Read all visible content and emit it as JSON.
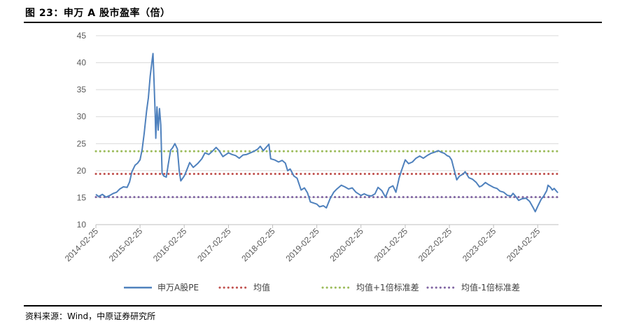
{
  "header": {
    "title": "图 23：申万 A 股市盈率（倍）"
  },
  "footer": {
    "source": "资料来源：Wind，中原证券研究所"
  },
  "chart_data": {
    "type": "line",
    "title": "图 23：申万 A 股市盈率（倍）",
    "xlabel": "",
    "ylabel": "",
    "ylim": [
      10,
      45
    ],
    "yticks": [
      10,
      15,
      20,
      25,
      30,
      35,
      40,
      45
    ],
    "xlim": [
      "2014-02-25",
      "2024-08-15"
    ],
    "xticks": [
      "2014-02-25",
      "2015-02-25",
      "2016-02-25",
      "2017-02-25",
      "2018-02-25",
      "2019-02-25",
      "2020-02-25",
      "2021-02-25",
      "2022-02-25",
      "2023-02-25",
      "2024-02-25"
    ],
    "grid": "horizontal",
    "legend_position": "bottom",
    "series": [
      {
        "name": "申万A股PE",
        "color": "#4f81bd",
        "style": "solid",
        "points": [
          [
            "2014-02-25",
            15.6
          ],
          [
            "2014-03-20",
            15.2
          ],
          [
            "2014-04-20",
            15.6
          ],
          [
            "2014-05-20",
            15.1
          ],
          [
            "2014-06-20",
            15.4
          ],
          [
            "2014-07-20",
            15.8
          ],
          [
            "2014-08-15",
            16.0
          ],
          [
            "2014-09-10",
            16.6
          ],
          [
            "2014-10-10",
            17.0
          ],
          [
            "2014-11-10",
            16.9
          ],
          [
            "2014-11-30",
            17.9
          ],
          [
            "2014-12-20",
            19.8
          ],
          [
            "2015-01-15",
            21.0
          ],
          [
            "2015-02-05",
            21.4
          ],
          [
            "2015-02-25",
            22.0
          ],
          [
            "2015-03-15",
            24.0
          ],
          [
            "2015-04-01",
            27.0
          ],
          [
            "2015-04-20",
            31.0
          ],
          [
            "2015-05-05",
            33.5
          ],
          [
            "2015-05-20",
            37.5
          ],
          [
            "2015-06-05",
            40.5
          ],
          [
            "2015-06-12",
            41.7
          ],
          [
            "2015-06-22",
            35.8
          ],
          [
            "2015-06-30",
            30.5
          ],
          [
            "2015-07-05",
            26.0
          ],
          [
            "2015-07-15",
            31.8
          ],
          [
            "2015-07-25",
            27.5
          ],
          [
            "2015-08-05",
            31.5
          ],
          [
            "2015-08-15",
            28.5
          ],
          [
            "2015-08-26",
            19.5
          ],
          [
            "2015-09-10",
            19.0
          ],
          [
            "2015-09-30",
            18.8
          ],
          [
            "2015-10-15",
            21.0
          ],
          [
            "2015-11-05",
            23.8
          ],
          [
            "2015-11-20",
            24.2
          ],
          [
            "2015-12-10",
            25.0
          ],
          [
            "2015-12-31",
            24.0
          ],
          [
            "2016-01-15",
            20.0
          ],
          [
            "2016-01-28",
            18.1
          ],
          [
            "2016-02-25",
            19.0
          ],
          [
            "2016-03-15",
            20.0
          ],
          [
            "2016-04-10",
            21.5
          ],
          [
            "2016-05-10",
            20.6
          ],
          [
            "2016-06-15",
            21.3
          ],
          [
            "2016-07-20",
            22.2
          ],
          [
            "2016-08-15",
            23.3
          ],
          [
            "2016-09-15",
            23.0
          ],
          [
            "2016-10-15",
            23.6
          ],
          [
            "2016-11-15",
            24.3
          ],
          [
            "2016-12-10",
            23.7
          ],
          [
            "2017-01-10",
            22.6
          ],
          [
            "2017-02-25",
            23.3
          ],
          [
            "2017-03-25",
            23.0
          ],
          [
            "2017-04-25",
            22.8
          ],
          [
            "2017-05-25",
            22.3
          ],
          [
            "2017-06-25",
            22.9
          ],
          [
            "2017-07-25",
            23.0
          ],
          [
            "2017-08-25",
            23.3
          ],
          [
            "2017-09-25",
            23.6
          ],
          [
            "2017-10-25",
            24.0
          ],
          [
            "2017-11-15",
            24.5
          ],
          [
            "2017-12-10",
            23.7
          ],
          [
            "2018-01-25",
            24.9
          ],
          [
            "2018-02-09",
            22.2
          ],
          [
            "2018-03-12",
            22.0
          ],
          [
            "2018-04-15",
            21.6
          ],
          [
            "2018-05-15",
            21.9
          ],
          [
            "2018-06-10",
            21.4
          ],
          [
            "2018-06-29",
            20.0
          ],
          [
            "2018-07-20",
            20.3
          ],
          [
            "2018-08-20",
            19.0
          ],
          [
            "2018-09-15",
            18.6
          ],
          [
            "2018-10-18",
            16.4
          ],
          [
            "2018-11-15",
            16.8
          ],
          [
            "2018-12-10",
            15.9
          ],
          [
            "2019-01-03",
            14.2
          ],
          [
            "2019-02-25",
            13.8
          ],
          [
            "2019-03-20",
            13.3
          ],
          [
            "2019-04-20",
            13.5
          ],
          [
            "2019-05-15",
            13.1
          ],
          [
            "2019-06-15",
            14.8
          ],
          [
            "2019-07-15",
            16.0
          ],
          [
            "2019-08-10",
            16.6
          ],
          [
            "2019-09-15",
            17.3
          ],
          [
            "2019-10-15",
            17.0
          ],
          [
            "2019-11-15",
            16.6
          ],
          [
            "2019-12-15",
            16.8
          ],
          [
            "2020-01-15",
            16.0
          ],
          [
            "2020-02-25",
            15.4
          ],
          [
            "2020-03-23",
            15.7
          ],
          [
            "2020-04-20",
            15.4
          ],
          [
            "2020-05-20",
            15.3
          ],
          [
            "2020-06-20",
            15.7
          ],
          [
            "2020-07-15",
            16.9
          ],
          [
            "2020-08-15",
            16.3
          ],
          [
            "2020-09-15",
            15.1
          ],
          [
            "2020-10-15",
            16.8
          ],
          [
            "2020-11-15",
            17.2
          ],
          [
            "2020-12-10",
            16.0
          ],
          [
            "2021-01-05",
            18.6
          ],
          [
            "2021-01-25",
            20.0
          ],
          [
            "2021-02-25",
            22.0
          ],
          [
            "2021-03-25",
            21.3
          ],
          [
            "2021-04-25",
            21.6
          ],
          [
            "2021-05-25",
            22.3
          ],
          [
            "2021-06-25",
            22.7
          ],
          [
            "2021-07-25",
            22.3
          ],
          [
            "2021-08-25",
            22.8
          ],
          [
            "2021-09-25",
            23.2
          ],
          [
            "2021-10-25",
            23.4
          ],
          [
            "2021-11-25",
            23.7
          ],
          [
            "2021-12-20",
            23.4
          ],
          [
            "2022-01-15",
            23.2
          ],
          [
            "2022-02-05",
            22.8
          ],
          [
            "2022-02-25",
            22.6
          ],
          [
            "2022-03-15",
            22.0
          ],
          [
            "2022-04-27",
            18.3
          ],
          [
            "2022-05-20",
            19.0
          ],
          [
            "2022-06-20",
            19.4
          ],
          [
            "2022-07-05",
            19.8
          ],
          [
            "2022-08-05",
            18.7
          ],
          [
            "2022-09-05",
            18.4
          ],
          [
            "2022-10-05",
            17.8
          ],
          [
            "2022-11-01",
            17.0
          ],
          [
            "2022-11-20",
            17.2
          ],
          [
            "2022-12-20",
            17.8
          ],
          [
            "2023-01-15",
            17.4
          ],
          [
            "2023-02-25",
            16.9
          ],
          [
            "2023-03-25",
            16.7
          ],
          [
            "2023-04-20",
            16.2
          ],
          [
            "2023-05-20",
            16.0
          ],
          [
            "2023-06-20",
            15.4
          ],
          [
            "2023-07-20",
            15.3
          ],
          [
            "2023-08-05",
            15.8
          ],
          [
            "2023-08-28",
            15.2
          ],
          [
            "2023-09-20",
            14.5
          ],
          [
            "2023-10-20",
            14.8
          ],
          [
            "2023-11-20",
            14.9
          ],
          [
            "2023-12-20",
            14.3
          ],
          [
            "2024-01-20",
            13.1
          ],
          [
            "2024-02-05",
            12.4
          ],
          [
            "2024-02-25",
            13.4
          ],
          [
            "2024-03-25",
            14.7
          ],
          [
            "2024-04-15",
            15.3
          ],
          [
            "2024-05-10",
            16.3
          ],
          [
            "2024-05-20",
            17.3
          ],
          [
            "2024-06-10",
            16.9
          ],
          [
            "2024-06-25",
            16.4
          ],
          [
            "2024-07-10",
            16.7
          ],
          [
            "2024-07-25",
            16.3
          ],
          [
            "2024-08-10",
            15.9
          ]
        ]
      },
      {
        "name": "均值",
        "color": "#c0504d",
        "style": "dotted",
        "value": 19.4
      },
      {
        "name": "均值+1倍标准差",
        "color": "#9bbb59",
        "style": "dotted",
        "value": 23.6
      },
      {
        "name": "均值-1倍标准差",
        "color": "#8064a2",
        "style": "dotted",
        "value": 15.1
      }
    ]
  }
}
